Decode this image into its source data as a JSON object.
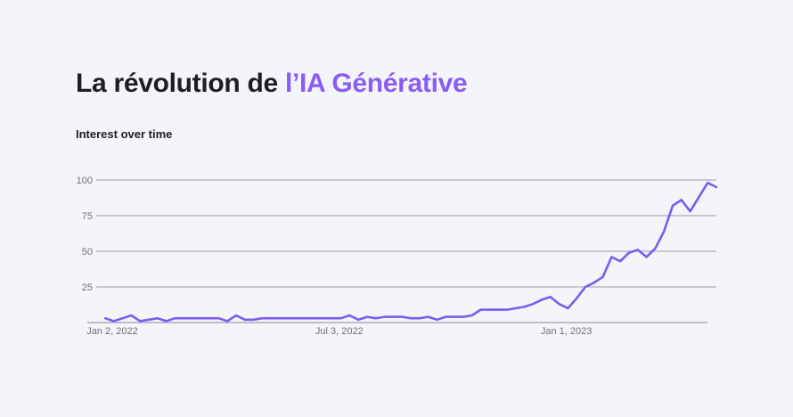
{
  "header": {
    "title_main": "La révolution de ",
    "title_accent": "l’IA Générative",
    "subtitle": "Interest over time"
  },
  "colors": {
    "accent": "#8b5cf6",
    "line": "#7b5cf0",
    "grid": "#a9abbb",
    "axis_text": "#6f6f7c",
    "background": "#f4f5f9"
  },
  "chart_data": {
    "type": "line",
    "title": "Interest over time",
    "xlabel": "",
    "ylabel": "",
    "ylim": [
      0,
      100
    ],
    "yticks": [
      25,
      50,
      75,
      100
    ],
    "grid": true,
    "x_tick_labels": [
      "Jan 2, 2022",
      "Jul 3, 2022",
      "Jan 1, 2023"
    ],
    "x_tick_weeks": [
      0,
      26,
      52
    ],
    "x_range_weeks": [
      0,
      70
    ],
    "x_unit": "weeks starting Jan 2, 2022",
    "series": [
      {
        "values": [
          3,
          1,
          3,
          5,
          1,
          2,
          3,
          1,
          3,
          3,
          3,
          3,
          3,
          3,
          1,
          5,
          2,
          2,
          3,
          3,
          3,
          3,
          3,
          3,
          3,
          3,
          3,
          3,
          5,
          2,
          4,
          3,
          4,
          4,
          4,
          3,
          3,
          4,
          2,
          4,
          4,
          4,
          5,
          9,
          9,
          9,
          9,
          10,
          11,
          13,
          16,
          18,
          13,
          10,
          17,
          25,
          28,
          32,
          46,
          43,
          49,
          51,
          46,
          52,
          64,
          82,
          86,
          78,
          88,
          98,
          95
        ]
      }
    ]
  }
}
